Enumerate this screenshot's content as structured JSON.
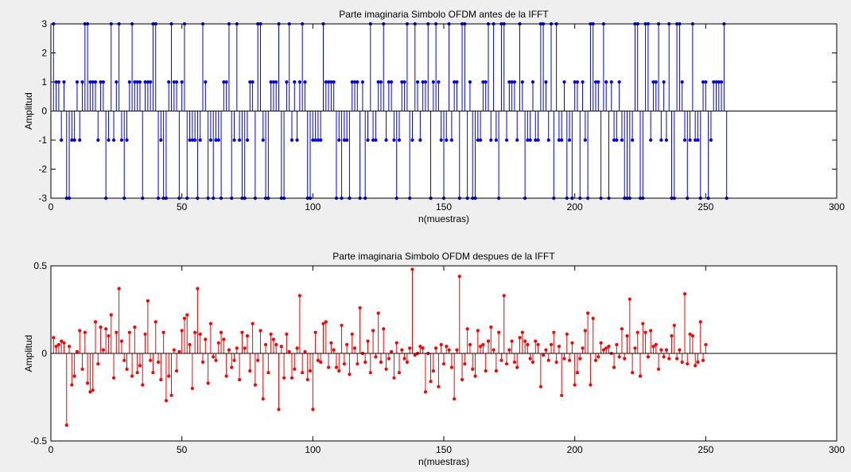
{
  "chart_data": [
    {
      "type": "stem",
      "title": "Parte imaginaria Simbolo OFDM antes de la IFFT",
      "xlabel": "n(muestras)",
      "ylabel": "Amplitud",
      "xlim": [
        0,
        300
      ],
      "ylim": [
        -3,
        3
      ],
      "xticks": [
        0,
        50,
        100,
        150,
        200,
        250,
        300
      ],
      "yticks": [
        -3,
        -2,
        -1,
        0,
        1,
        2,
        3
      ],
      "grid": false,
      "color": "#0000ff",
      "x_start": 1,
      "values": [
        3,
        1,
        1,
        -1,
        1,
        -3,
        -3,
        -1,
        -1,
        1,
        -1,
        1,
        3,
        3,
        1,
        1,
        1,
        -1,
        1,
        1,
        -3,
        -1,
        3,
        -1,
        1,
        3,
        -1,
        -3,
        -1,
        1,
        3,
        1,
        1,
        1,
        -3,
        1,
        1,
        1,
        3,
        3,
        -3,
        -1,
        -3,
        -3,
        1,
        3,
        1,
        1,
        -3,
        1,
        3,
        -3,
        -1,
        -1,
        -1,
        -3,
        -1,
        3,
        1,
        -3,
        -1,
        -3,
        -1,
        -1,
        -3,
        1,
        1,
        3,
        -3,
        -1,
        3,
        -1,
        -3,
        -3,
        -1,
        1,
        1,
        -3,
        3,
        3,
        -1,
        -3,
        -3,
        1,
        1,
        1,
        3,
        -3,
        -3,
        1,
        3,
        -1,
        1,
        -1,
        1,
        3,
        1,
        -3,
        -3,
        -1,
        -1,
        -1,
        -1,
        3,
        1,
        1,
        1,
        1,
        -3,
        -1,
        -3,
        -1,
        -1,
        -3,
        1,
        1,
        1,
        -3,
        1,
        -3,
        -1,
        3,
        -1,
        -1,
        1,
        1,
        3,
        -1,
        1,
        1,
        -1,
        -3,
        -1,
        1,
        1,
        3,
        -3,
        -1,
        3,
        1,
        -1,
        1,
        1,
        3,
        -3,
        1,
        3,
        1,
        -1,
        -3,
        -1,
        3,
        -1,
        1,
        1,
        -3,
        3,
        3,
        -3,
        1,
        -3,
        -3,
        -1,
        -1,
        1,
        1,
        3,
        -1,
        3,
        -1,
        -3,
        3,
        3,
        -1,
        1,
        1,
        1,
        -1,
        3,
        1,
        -3,
        -1,
        -1,
        1,
        -1,
        -1,
        3,
        3,
        1,
        -1,
        3,
        -3,
        3,
        -1,
        -1,
        1,
        -3,
        -1,
        -3,
        1,
        1,
        -3,
        1,
        -1,
        -3,
        3,
        3,
        1,
        1,
        -3,
        3,
        1,
        -3,
        1,
        -1,
        -1,
        1,
        -1,
        -3,
        -3,
        -3,
        -1,
        3,
        3,
        -3,
        -3,
        3,
        3,
        -1,
        1,
        1,
        3,
        -1,
        1,
        -1,
        3,
        -3,
        -3,
        3,
        3,
        1,
        -1,
        -3,
        -1,
        3,
        -1,
        -1,
        -3,
        1,
        1,
        -3,
        -1,
        1,
        1,
        1,
        1,
        3,
        -3
      ],
      "baseline": 0
    },
    {
      "type": "stem",
      "title": "Parte imaginaria Simbolo OFDM despues de la IFFT",
      "xlabel": "n(muestras)",
      "ylabel": "Amplitud",
      "xlim": [
        0,
        300
      ],
      "ylim": [
        -0.5,
        0.5
      ],
      "xticks": [
        0,
        50,
        100,
        150,
        200,
        250,
        300
      ],
      "yticks": [
        -0.5,
        0,
        0.5
      ],
      "grid": false,
      "color": "#ff0000",
      "x_start": 1,
      "values": [
        0.09,
        0.04,
        0.05,
        0.07,
        0.06,
        -0.41,
        0.04,
        -0.18,
        -0.13,
        0.01,
        0.13,
        -0.09,
        0.12,
        -0.17,
        -0.22,
        -0.21,
        0.18,
        -0.06,
        0.15,
        0.02,
        0.14,
        0.1,
        0.22,
        -0.14,
        0.12,
        0.37,
        0.07,
        -0.04,
        -0.09,
        0.12,
        -0.13,
        0.15,
        -0.11,
        -0.07,
        -0.18,
        0.11,
        0.3,
        -0.04,
        -0.11,
        0.18,
        -0.05,
        -0.15,
        0.12,
        -0.27,
        -0.13,
        -0.24,
        0.02,
        -0.1,
        0.01,
        0.13,
        0.2,
        0.22,
        0.05,
        -0.2,
        0.12,
        0.37,
        0.11,
        -0.05,
        0.08,
        -0.17,
        0.17,
        -0.02,
        -0.04,
        0.06,
        0.12,
        0.08,
        -0.13,
        0.02,
        -0.08,
        -0.04,
        0.03,
        -0.15,
        0.12,
        0.03,
        0.1,
        -0.1,
        0.17,
        -0.18,
        -0.04,
        0.13,
        -0.26,
        0.05,
        -0.11,
        0.11,
        0.08,
        0.05,
        -0.32,
        0.04,
        -0.14,
        0.11,
        0.01,
        -0.14,
        -0.09,
        0.03,
        0.33,
        -0.11,
        0.01,
        -0.15,
        -0.1,
        -0.32,
        0.12,
        -0.04,
        -0.05,
        0.17,
        0.18,
        -0.08,
        0.06,
        0.02,
        -0.08,
        -0.1,
        0.16,
        -0.06,
        0.05,
        -0.12,
        0.11,
        0.03,
        -0.06,
        0.26,
        0.0,
        -0.05,
        0.07,
        -0.11,
        0.13,
        -0.02,
        0.23,
        -0.05,
        0.14,
        -0.09,
        -0.03,
        0.01,
        -0.14,
        0.06,
        -0.11,
        0.02,
        -0.03,
        -0.05,
        0.03,
        0.48,
        -0.01,
        0.0,
        0.04,
        0.03,
        -0.22,
        0.0,
        -0.16,
        -0.1,
        0.03,
        -0.19,
        0.05,
        -0.06,
        0.04,
        0.02,
        -0.08,
        -0.26,
        0.02,
        0.44,
        -0.15,
        -0.06,
        0.14,
        0.05,
        -0.09,
        -0.13,
        0.13,
        0.04,
        0.05,
        -0.1,
        0.07,
        0.15,
        0.02,
        -0.1,
        0.12,
        -0.04,
        0.33,
        -0.06,
        0.02,
        0.07,
        -0.05,
        -0.08,
        0.09,
        0.12,
        0.07,
        0.05,
        -0.03,
        -0.05,
        0.07,
        0.05,
        -0.19,
        -0.01,
        0.02,
        -0.04,
        0.05,
        0.12,
        -0.05,
        0.04,
        -0.24,
        -0.03,
        0.11,
        -0.04,
        0.06,
        -0.18,
        -0.11,
        -0.03,
        0.03,
        0.13,
        0.23,
        -0.18,
        0.2,
        -0.04,
        -0.02,
        0.06,
        0.02,
        0.03,
        0.04,
        0.0,
        -0.08,
        0.05,
        -0.02,
        0.14,
        -0.03,
        0.1,
        0.31,
        -0.11,
        0.03,
        0.12,
        -0.13,
        0.17,
        0.12,
        -0.02,
        0.13,
        0.04,
        0.05,
        -0.09,
        0.02,
        -0.02,
        0.02,
        -0.03,
        0.1,
        0.16,
        -0.03,
        0.02,
        -0.05,
        0.34,
        -0.06,
        0.11,
        0.1,
        -0.07,
        -0.05,
        0.18,
        -0.04,
        0.05
      ],
      "baseline": 0
    }
  ]
}
